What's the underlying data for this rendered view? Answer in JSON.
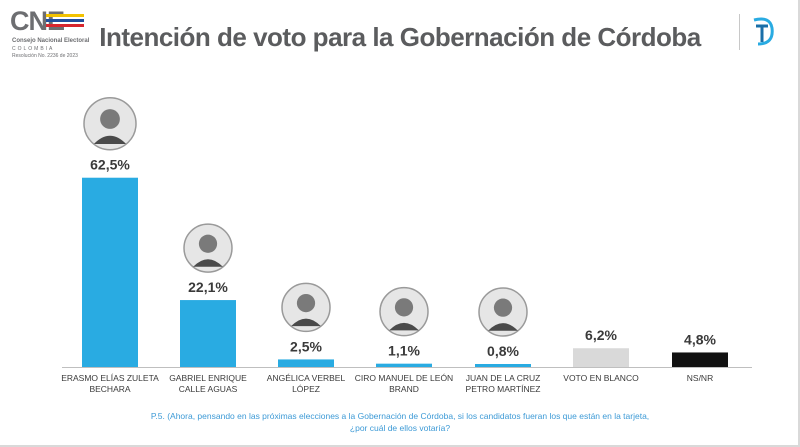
{
  "header": {
    "title": "Intención de voto para la Gobernación de Córdoba",
    "logo_mark": "CNE",
    "logo_line1": "Consejo Nacional Electoral",
    "logo_line2": "COLOMBIA",
    "logo_line3": "Resolución No. 2236 de 2023"
  },
  "footnote": {
    "line1": "P.5. (Ahora, pensando en las próximas elecciones a la Gobernación de Córdoba, si los candidatos fueran los que están en la tarjeta,",
    "line2": "¿por cuál de ellos votaría?"
  },
  "colors": {
    "candidate_bar": "#29abe2",
    "blank_bar": "#d9d9d9",
    "nsnr_bar": "#111111",
    "title": "#5b5c5e",
    "footnote": "#3d9ad6",
    "brand": "#29abe2"
  },
  "chart_data": {
    "type": "bar",
    "title": "Intención de voto para la Gobernación de Córdoba",
    "xlabel": "",
    "ylabel": "",
    "ylim": [
      0,
      70
    ],
    "grid": false,
    "categories": [
      [
        "ERASMO ELÍAS ZULETA",
        "BECHARA"
      ],
      [
        "GABRIEL ENRIQUE",
        "CALLE AGUAS"
      ],
      [
        "ANGÉLICA VERBEL",
        "LÓPEZ"
      ],
      [
        "CIRO MANUEL DE LEÓN",
        "BRAND"
      ],
      [
        "JUAN DE LA CRUZ",
        "PETRO MARTÍNEZ"
      ],
      [
        "VOTO EN BLANCO"
      ],
      [
        "NS/NR"
      ]
    ],
    "values": [
      62.5,
      22.1,
      2.5,
      1.1,
      0.8,
      6.2,
      4.8
    ],
    "value_labels": [
      "62,5%",
      "22,1%",
      "2,5%",
      "1,1%",
      "0,8%",
      "6,2%",
      "4,8%"
    ],
    "bar_colors": [
      "#29abe2",
      "#29abe2",
      "#29abe2",
      "#29abe2",
      "#29abe2",
      "#d9d9d9",
      "#111111"
    ],
    "has_photo": [
      true,
      true,
      true,
      true,
      true,
      false,
      false
    ]
  }
}
